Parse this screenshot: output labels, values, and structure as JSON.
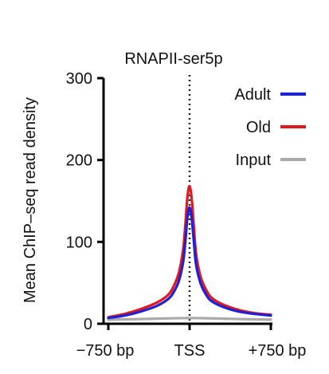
{
  "chart_data": {
    "type": "line",
    "title": "RNAPII-ser5p",
    "xlabel": "",
    "ylabel": "Mean ChIP–seq read density",
    "x_tick_labels": [
      "−750 bp",
      "TSS",
      "+750 bp"
    ],
    "x_ticks": [
      -750,
      0,
      750
    ],
    "xlim": [
      -750,
      750
    ],
    "y_ticks": [
      0,
      100,
      200,
      300
    ],
    "y_tick_labels": [
      "0",
      "100",
      "200",
      "300"
    ],
    "ylim": [
      0,
      300
    ],
    "grid": false,
    "legend_position": "top-right",
    "reference_line": {
      "x": 0,
      "style": "dotted"
    },
    "series": [
      {
        "name": "Adult",
        "color": "#1f1fd6",
        "x": [
          -750,
          -600,
          -450,
          -300,
          -200,
          -150,
          -100,
          -60,
          -40,
          -20,
          0,
          20,
          40,
          60,
          100,
          150,
          200,
          300,
          450,
          600,
          750
        ],
        "values": [
          7,
          10,
          15,
          22,
          30,
          38,
          52,
          75,
          100,
          130,
          142,
          128,
          100,
          72,
          50,
          36,
          28,
          21,
          15,
          12,
          10
        ]
      },
      {
        "name": "Old",
        "color": "#e0191f",
        "x": [
          -750,
          -600,
          -450,
          -300,
          -200,
          -150,
          -100,
          -60,
          -40,
          -20,
          0,
          20,
          40,
          60,
          100,
          150,
          200,
          300,
          450,
          600,
          750
        ],
        "values": [
          8,
          12,
          18,
          26,
          35,
          45,
          62,
          90,
          120,
          155,
          168,
          152,
          118,
          85,
          58,
          42,
          32,
          24,
          17,
          13,
          11
        ]
      },
      {
        "name": "Input",
        "color": "#aaaaaa",
        "x": [
          -750,
          -375,
          0,
          375,
          750
        ],
        "values": [
          5,
          6,
          7,
          6,
          5
        ]
      }
    ]
  }
}
